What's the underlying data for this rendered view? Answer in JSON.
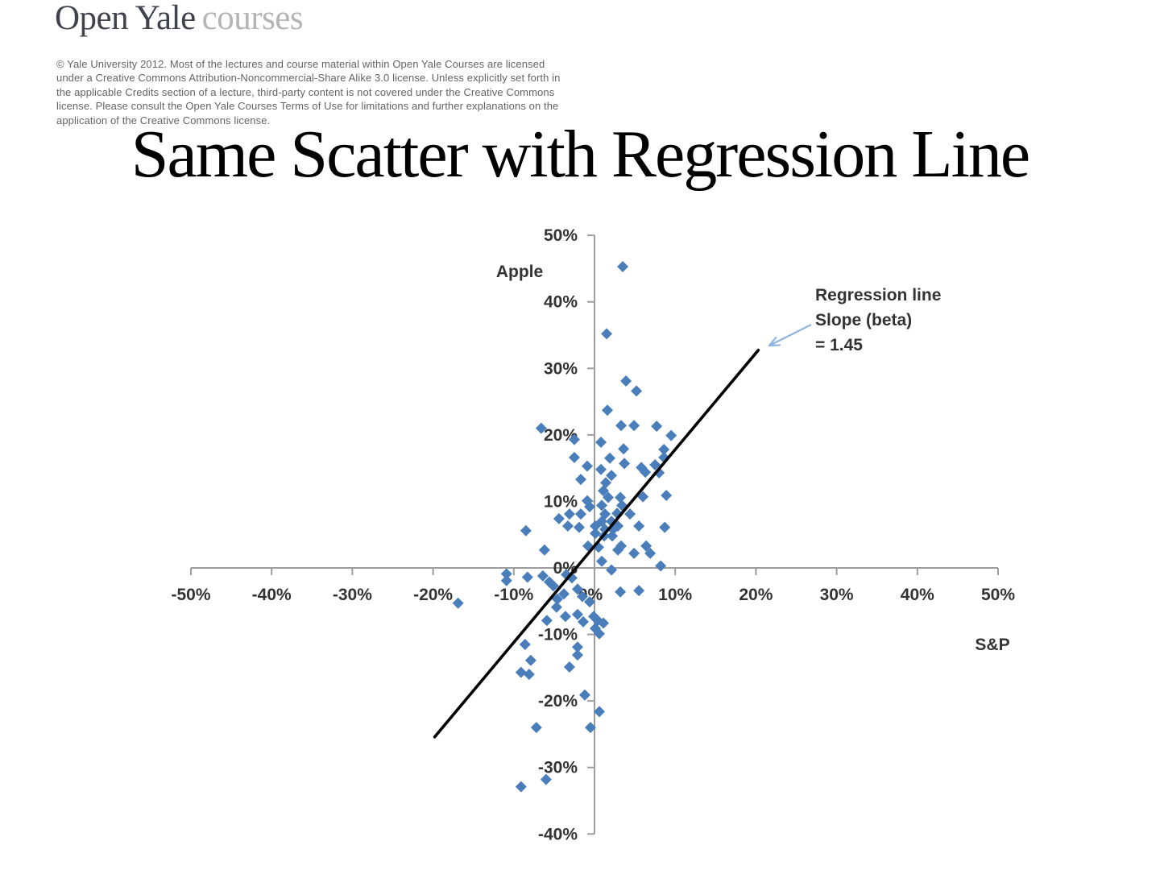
{
  "header": {
    "logo": {
      "primary": "Open Yale",
      "secondary": "courses"
    },
    "license_lines": [
      "© Yale University 2012. Most of the lectures and course material within Open Yale Courses are licensed",
      "under a Creative Commons Attribution-Noncommercial-Share Alike 3.0 license. Unless explicitly set forth in",
      "the applicable Credits section of a lecture, third-party content is not covered under the Creative Commons",
      "license. Please consult the Open Yale Courses Terms of Use for limitations and further explanations on the",
      "application of the Creative Commons license."
    ]
  },
  "slide": {
    "title": "Same Scatter with Regression Line"
  },
  "chart_data": {
    "type": "scatter",
    "x_axis": {
      "label": "S&P",
      "min": -50,
      "max": 50,
      "tick_step": 10,
      "unit": "%"
    },
    "y_axis": {
      "label": "Apple",
      "min": -40,
      "max": 50,
      "tick_step": 10,
      "unit": "%"
    },
    "points_pct": [
      [
        3.5,
        45.3
      ],
      [
        1.5,
        35.2
      ],
      [
        3.9,
        28.1
      ],
      [
        5.2,
        26.6
      ],
      [
        1.6,
        23.7
      ],
      [
        3.3,
        21.4
      ],
      [
        4.9,
        21.4
      ],
      [
        7.7,
        21.3
      ],
      [
        -6.6,
        21.0
      ],
      [
        9.5,
        19.9
      ],
      [
        -2.5,
        19.3
      ],
      [
        0.8,
        18.9
      ],
      [
        3.6,
        17.9
      ],
      [
        8.6,
        17.8
      ],
      [
        8.6,
        16.6
      ],
      [
        -2.5,
        16.6
      ],
      [
        1.9,
        16.5
      ],
      [
        3.7,
        15.7
      ],
      [
        7.5,
        15.5
      ],
      [
        -0.9,
        15.3
      ],
      [
        5.8,
        15.1
      ],
      [
        0.8,
        14.8
      ],
      [
        6.3,
        14.4
      ],
      [
        8.0,
        14.3
      ],
      [
        2.1,
        13.9
      ],
      [
        -1.7,
        13.3
      ],
      [
        1.4,
        12.8
      ],
      [
        1.1,
        11.6
      ],
      [
        1.7,
        10.6
      ],
      [
        3.2,
        10.6
      ],
      [
        6.0,
        10.7
      ],
      [
        8.9,
        10.9
      ],
      [
        -0.9,
        10.1
      ],
      [
        -0.6,
        9.2
      ],
      [
        0.9,
        9.4
      ],
      [
        3.4,
        9.4
      ],
      [
        -3.1,
        8.1
      ],
      [
        -1.7,
        8.1
      ],
      [
        1.3,
        8.1
      ],
      [
        2.8,
        8.2
      ],
      [
        4.4,
        8.1
      ],
      [
        -4.4,
        7.4
      ],
      [
        0.9,
        7.0
      ],
      [
        2.1,
        7.0
      ],
      [
        -8.5,
        5.6
      ],
      [
        -3.3,
        6.3
      ],
      [
        -1.9,
        6.1
      ],
      [
        0.1,
        6.3
      ],
      [
        1.3,
        5.8
      ],
      [
        2.3,
        5.8
      ],
      [
        2.9,
        6.3
      ],
      [
        5.5,
        6.3
      ],
      [
        8.7,
        6.1
      ],
      [
        0.1,
        5.2
      ],
      [
        1.2,
        4.8
      ],
      [
        2.2,
        4.8
      ],
      [
        -6.2,
        2.7
      ],
      [
        0.5,
        3.1
      ],
      [
        3.3,
        3.3
      ],
      [
        4.9,
        2.2
      ],
      [
        6.4,
        3.3
      ],
      [
        6.9,
        2.2
      ],
      [
        -0.8,
        3.3
      ],
      [
        2.9,
        2.7
      ],
      [
        0.9,
        1.0
      ],
      [
        8.2,
        0.3
      ],
      [
        2.1,
        -0.3
      ],
      [
        -10.9,
        -0.9
      ],
      [
        -10.9,
        -1.9
      ],
      [
        -8.3,
        -1.4
      ],
      [
        -6.4,
        -1.2
      ],
      [
        -5.6,
        -2.1
      ],
      [
        -5.1,
        -2.7
      ],
      [
        -3.5,
        -1.0
      ],
      [
        -2.8,
        -1.5
      ],
      [
        -2.1,
        -3.2
      ],
      [
        -3.8,
        -3.9
      ],
      [
        -1.5,
        -4.3
      ],
      [
        3.2,
        -3.6
      ],
      [
        5.5,
        -3.4
      ],
      [
        -16.9,
        -5.3
      ],
      [
        -4.6,
        -4.7
      ],
      [
        -0.6,
        -5.1
      ],
      [
        -4.7,
        -5.9
      ],
      [
        -3.6,
        -7.3
      ],
      [
        -2.1,
        -7.0
      ],
      [
        -1.4,
        -8.1
      ],
      [
        -0.1,
        -7.3
      ],
      [
        0.4,
        -7.9
      ],
      [
        1.1,
        -8.3
      ],
      [
        -5.9,
        -7.9
      ],
      [
        0.1,
        -9.1
      ],
      [
        0.6,
        -9.9
      ],
      [
        -8.6,
        -11.5
      ],
      [
        -2.1,
        -11.9
      ],
      [
        -2.1,
        -13.1
      ],
      [
        -7.9,
        -13.9
      ],
      [
        -3.1,
        -14.9
      ],
      [
        -9.1,
        -15.7
      ],
      [
        -8.1,
        -16.0
      ],
      [
        -1.2,
        -19.1
      ],
      [
        0.6,
        -21.6
      ],
      [
        -7.2,
        -24.0
      ],
      [
        -0.5,
        -24.0
      ],
      [
        -6.0,
        -31.8
      ],
      [
        -9.1,
        -32.9
      ]
    ],
    "regression_line": {
      "slope": 1.45,
      "intercept_pct": 3.3,
      "x_start_pct": -19.8,
      "x_end_pct": 20.3
    },
    "annotation": {
      "lines": [
        "Regression line",
        "Slope (beta)",
        "= 1.45"
      ]
    },
    "style": {
      "marker_color": "#4a7ebb",
      "regression_color": "#000000",
      "axis_color": "#9d9d9d",
      "label_color": "#333333",
      "arrow_color": "#8eb4e3"
    }
  }
}
